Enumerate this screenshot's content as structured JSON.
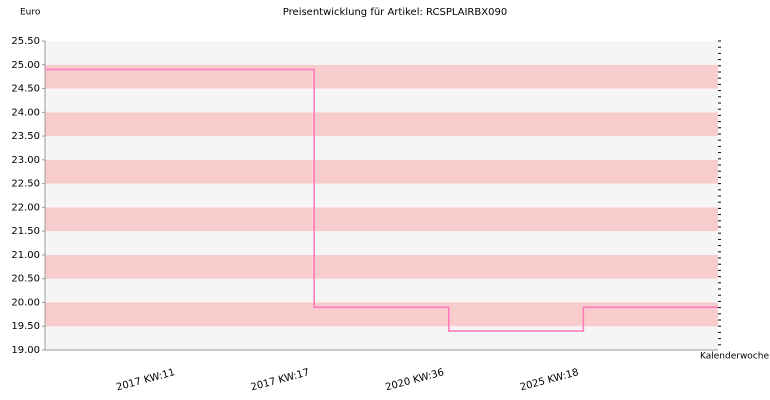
{
  "chart_data": {
    "type": "step",
    "title": "Preisentwicklung für Artikel: RCSPLAIRBX090",
    "y_label": "Euro",
    "x_label": "Kalenderwoche",
    "categories": [
      "2017 KW:11",
      "2017 KW:17",
      "2020 KW:36",
      "2025 KW:18"
    ],
    "values": [
      24.9,
      19.9,
      19.4,
      19.9
    ],
    "color": "#ff77bb",
    "band_colors": [
      "#f5f5f5",
      "#f8cccc"
    ],
    "ylim": [
      19,
      25.5
    ],
    "yticks": [
      {
        "value": 19,
        "label": "19.00"
      },
      {
        "value": 19.5,
        "label": "19.50"
      },
      {
        "value": 20,
        "label": "20.00"
      },
      {
        "value": 20.5,
        "label": "20.50"
      },
      {
        "value": 21,
        "label": "21.00"
      },
      {
        "value": 21.5,
        "label": "21.50"
      },
      {
        "value": 22,
        "label": "22.00"
      },
      {
        "value": 22.5,
        "label": "22.50"
      },
      {
        "value": 23,
        "label": "23.00"
      },
      {
        "value": 23.5,
        "label": "23.50"
      },
      {
        "value": 24,
        "label": "24.00"
      },
      {
        "value": 24.5,
        "label": "24.50"
      },
      {
        "value": 25,
        "label": "25.00"
      },
      {
        "value": 25.5,
        "label": "25.50"
      }
    ]
  }
}
